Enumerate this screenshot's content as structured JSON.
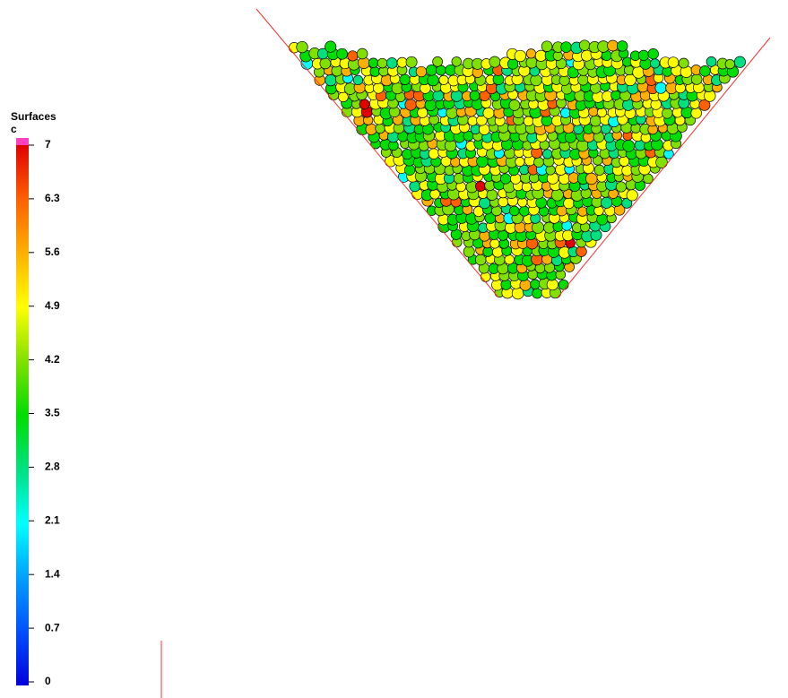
{
  "legend": {
    "title": "Surfaces",
    "subtitle": "c",
    "range": [
      0,
      7
    ],
    "ticks": [
      0,
      0.7,
      1.4,
      2.1,
      2.8,
      3.5,
      4.2,
      4.9,
      5.6,
      6.3,
      7
    ]
  }
}
